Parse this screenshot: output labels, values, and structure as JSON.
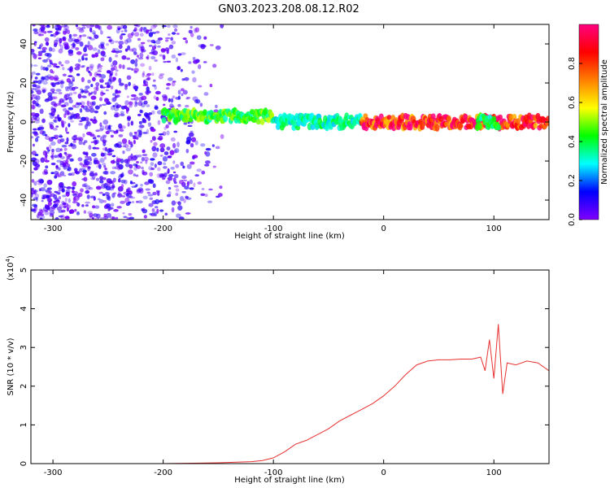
{
  "title": "GN03.2023.208.08.12.R02",
  "chart_data": [
    {
      "type": "heatmap",
      "xlabel": "Height of straight line (km)",
      "ylabel": "Frequency (Hz)",
      "xlim": [
        -320,
        150
      ],
      "ylim": [
        -50,
        50
      ],
      "x_ticks": [
        -300,
        -200,
        -100,
        0,
        100
      ],
      "y_ticks": [
        -40,
        -20,
        0,
        20,
        40
      ],
      "colorbar": {
        "label": "Normalized spectral amplitude",
        "range": [
          0.0,
          1.0
        ],
        "ticks": [
          "0.0",
          "0.2",
          "0.4",
          "0.6",
          "0.8"
        ],
        "colormap": [
          "#8000ff",
          "#0000ff",
          "#00ffff",
          "#00ff00",
          "#ffff00",
          "#ff8000",
          "#ff0000",
          "#ff0080"
        ]
      },
      "features": [
        {
          "x_range": [
            -320,
            -140
          ],
          "freq_range": [
            -50,
            50
          ],
          "amplitude": 0.05,
          "description_key": "noise"
        },
        {
          "x_range": [
            -200,
            -100
          ],
          "freq_center": 3,
          "amplitude": 0.45
        },
        {
          "x_range": [
            -100,
            -20
          ],
          "freq_center": 0,
          "amplitude": 0.35
        },
        {
          "x_range": [
            -20,
            150
          ],
          "freq_center": 0,
          "amplitude": 0.9
        },
        {
          "x_range": [
            85,
            105
          ],
          "freq_center": 0,
          "amplitude": 0.4
        }
      ]
    },
    {
      "type": "line",
      "xlabel": "Height of straight line (km)",
      "ylabel": "SNR (10 * v/v)",
      "y_multiplier": "(x10",
      "y_multiplier_exp": "4",
      "y_multiplier_close": ")",
      "xlim": [
        -320,
        150
      ],
      "ylim": [
        0,
        5
      ],
      "x_ticks": [
        -300,
        -200,
        -100,
        0,
        100
      ],
      "y_ticks": [
        0,
        1,
        2,
        3,
        4,
        5
      ],
      "series": [
        {
          "color": "#e83030",
          "x": [
            -320,
            -200,
            -150,
            -120,
            -110,
            -100,
            -90,
            -80,
            -70,
            -60,
            -50,
            -40,
            -30,
            -20,
            -10,
            0,
            10,
            20,
            30,
            40,
            50,
            60,
            70,
            80,
            88,
            92,
            96,
            100,
            104,
            108,
            112,
            120,
            130,
            140,
            150
          ],
          "y": [
            0.0,
            0.0,
            0.02,
            0.05,
            0.08,
            0.15,
            0.3,
            0.5,
            0.6,
            0.75,
            0.9,
            1.1,
            1.25,
            1.4,
            1.55,
            1.75,
            2.0,
            2.3,
            2.55,
            2.65,
            2.68,
            2.68,
            2.7,
            2.7,
            2.75,
            2.4,
            3.2,
            2.2,
            3.6,
            1.8,
            2.6,
            2.55,
            2.65,
            2.6,
            2.4
          ]
        }
      ]
    }
  ]
}
